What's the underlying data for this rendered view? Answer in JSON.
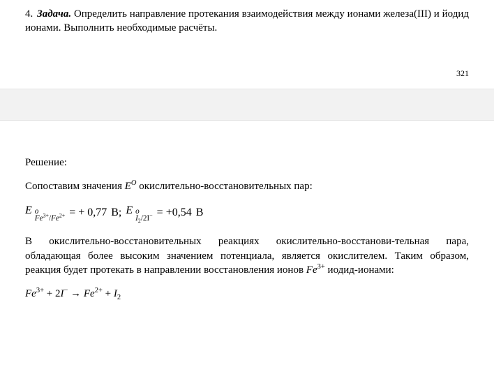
{
  "problem": {
    "number": "4.",
    "label": "Задача.",
    "text_a": " Определить направление протекания взаимодействия между ионами железа(III) и йодид ионами. Выполнить необходимые расчёты."
  },
  "page_number": "321",
  "solution_heading": "Решение:",
  "compare_line_a": "Сопоставим значения ",
  "compare_symbol": "E",
  "compare_symbol_sup": "O",
  "compare_line_b": " окислительно-восстановительных пар:",
  "eq1": {
    "E": "E",
    "sup": "o",
    "sub_top": "Fe",
    "sub_top_sup": "3+",
    "slash": "/",
    "sub_bot": "Fe",
    "sub_bot_sup": "2+",
    "eq": " = + 0,77 ",
    "unit": "В; "
  },
  "eq2": {
    "E": "E",
    "sup": "o",
    "sub_top": "I",
    "sub_top_sub": "2",
    "slash": "/",
    "sub_bot": "2I",
    "sub_bot_sup": "−",
    "eq": " = +0,54 ",
    "unit": "В"
  },
  "para2_a": "В окислительно-восстановительных реакциях окислительно-восстанови-тельная пара, обладающая более высоким значением потенциала, является окислителем. Таким образом, реакция будет протекать в направлении восстановления ионов ",
  "para2_fe": "Fe",
  "para2_fe_sup": "3+",
  "para2_b": " иодид-ионами:",
  "rxn": {
    "a": "Fe",
    "a_sup": "3+",
    "plus1": " + 2",
    "b": "I",
    "b_sup": "−",
    "arrow": " → ",
    "c": "Fe",
    "c_sup": "2+",
    "plus2": " + ",
    "d": "I",
    "d_sub": "2"
  }
}
